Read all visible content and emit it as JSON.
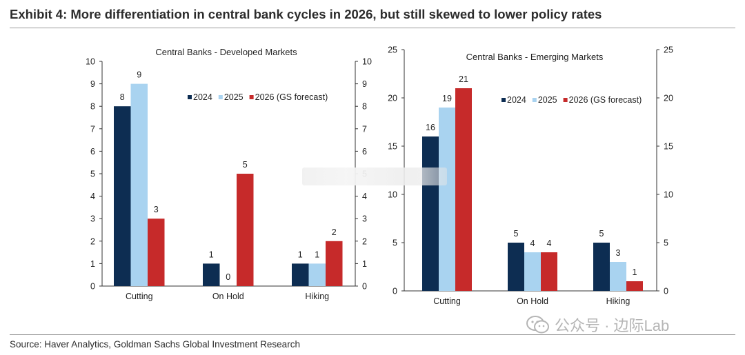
{
  "title": "Exhibit 4: More differentiation in central bank cycles in 2026, but still skewed to lower policy rates",
  "source": "Source: Haver Analytics, Goldman Sachs Global Investment Research",
  "watermark": "公众号 · 边际Lab",
  "colors": {
    "2024": "#0d2d52",
    "2025": "#a9d3f0",
    "2026": "#c62a2a",
    "axis": "#333333",
    "text": "#222222"
  },
  "chart_data": [
    {
      "type": "bar",
      "title": "Central Banks - Developed Markets",
      "categories": [
        "Cutting",
        "On Hold",
        "Hiking"
      ],
      "series": [
        {
          "name": "2024",
          "values": [
            8,
            1,
            1
          ]
        },
        {
          "name": "2025",
          "values": [
            9,
            0,
            1
          ]
        },
        {
          "name": "2026 (GS forecast)",
          "values": [
            3,
            5,
            2
          ]
        }
      ],
      "ylim": [
        0,
        10
      ],
      "yticks": [
        0,
        1,
        2,
        3,
        4,
        5,
        6,
        7,
        8,
        9,
        10
      ],
      "xlabel": "",
      "ylabel": "",
      "legend": "top-right",
      "grid": false
    },
    {
      "type": "bar",
      "title": "Central Banks - Emerging Markets",
      "categories": [
        "Cutting",
        "On Hold",
        "Hiking"
      ],
      "series": [
        {
          "name": "2024",
          "values": [
            16,
            5,
            5
          ]
        },
        {
          "name": "2025",
          "values": [
            19,
            4,
            3
          ]
        },
        {
          "name": "2026 (GS forecast)",
          "values": [
            21,
            4,
            1
          ]
        }
      ],
      "ylim": [
        0,
        25
      ],
      "yticks": [
        0,
        5,
        10,
        15,
        20,
        25
      ],
      "xlabel": "",
      "ylabel": "",
      "legend": "top-right",
      "grid": false
    }
  ]
}
